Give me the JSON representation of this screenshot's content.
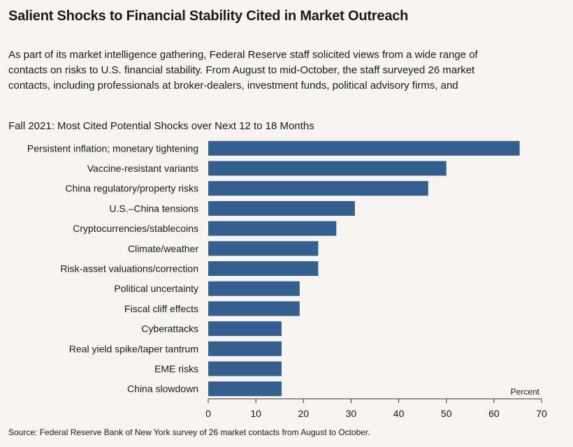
{
  "header": {
    "title": "Salient Shocks to Financial Stability Cited in Market Outreach",
    "intro_lines": [
      "As part of its market intelligence gathering, Federal Reserve staff solicited views from a wide range of",
      "contacts on risks to U.S. financial stability. From August to mid-October, the staff surveyed 26 market",
      "contacts, including professionals at broker-dealers, investment funds, political advisory firms, and"
    ]
  },
  "footer": {
    "source": "Source: Federal Reserve Bank of New York survey of 26 market contacts from August to October."
  },
  "colors": {
    "bar": "#345f8f",
    "axis": "#333333",
    "background": "#f7f5f2"
  },
  "chart_data": {
    "type": "bar",
    "orientation": "horizontal",
    "title": "Fall 2021: Most Cited Potential Shocks over Next 12 to 18 Months",
    "unit_label": "Percent",
    "categories": [
      "Persistent inflation; monetary tightening",
      "Vaccine-resistant variants",
      "China regulatory/property risks",
      "U.S.–China tensions",
      "Cryptocurrencies/stablecoins",
      "Climate/weather",
      "Risk-asset valuations/correction",
      "Political uncertainty",
      "Fiscal cliff effects",
      "Cyberattacks",
      "Real yield spike/taper tantrum",
      "EME risks",
      "China slowdown"
    ],
    "values": [
      65.4,
      50.0,
      46.2,
      30.8,
      26.9,
      23.1,
      23.1,
      19.2,
      19.2,
      15.4,
      15.4,
      15.4,
      15.4
    ],
    "xlim": [
      0,
      70
    ],
    "xticks": [
      0,
      10,
      20,
      30,
      40,
      50,
      60,
      70
    ],
    "grid": false,
    "legend": "none"
  }
}
